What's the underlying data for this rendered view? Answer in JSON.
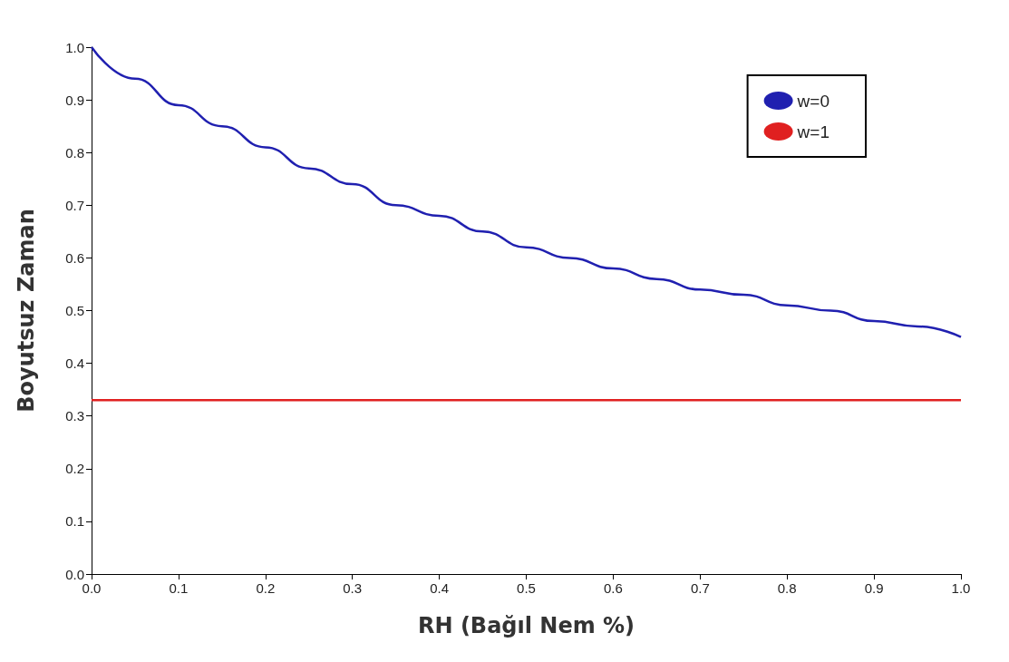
{
  "chart_data": {
    "type": "line",
    "xlabel": "RH (Bağıl Nem %)",
    "ylabel": "Boyutsuz Zaman",
    "x": [
      0,
      0.05,
      0.1,
      0.15,
      0.2,
      0.25,
      0.3,
      0.35,
      0.4,
      0.45,
      0.5,
      0.55,
      0.6,
      0.65,
      0.7,
      0.75,
      0.8,
      0.85,
      0.9,
      0.95,
      1.0
    ],
    "series": [
      {
        "name": "w=0",
        "color": "#2020b0",
        "values": [
          1.0,
          0.94,
          0.89,
          0.85,
          0.81,
          0.77,
          0.74,
          0.7,
          0.68,
          0.65,
          0.62,
          0.6,
          0.58,
          0.56,
          0.54,
          0.53,
          0.51,
          0.5,
          0.48,
          0.47,
          0.45
        ]
      },
      {
        "name": "w=1",
        "color": "#e02020",
        "values": [
          0.33,
          0.33,
          0.33,
          0.33,
          0.33,
          0.33,
          0.33,
          0.33,
          0.33,
          0.33,
          0.33,
          0.33,
          0.33,
          0.33,
          0.33,
          0.33,
          0.33,
          0.33,
          0.33,
          0.33,
          0.33
        ]
      }
    ],
    "xlim": [
      0,
      1.0
    ],
    "ylim": [
      0,
      1.0
    ],
    "xticks": [
      {
        "value": 0,
        "label": "0.0"
      },
      0.1,
      0.2,
      0.3,
      0.4,
      0.5,
      0.6,
      0.7,
      0.8,
      0.9,
      {
        "value": 1,
        "label": "1.0"
      }
    ],
    "yticks": [
      {
        "value": 0,
        "label": "0.0"
      },
      0.1,
      0.2,
      0.3,
      0.4,
      0.5,
      0.6,
      0.7,
      0.8,
      0.9,
      {
        "value": 1,
        "label": "1.0"
      }
    ],
    "grid": false,
    "legend": "top right",
    "marker": "none",
    "line_style": "solid"
  }
}
